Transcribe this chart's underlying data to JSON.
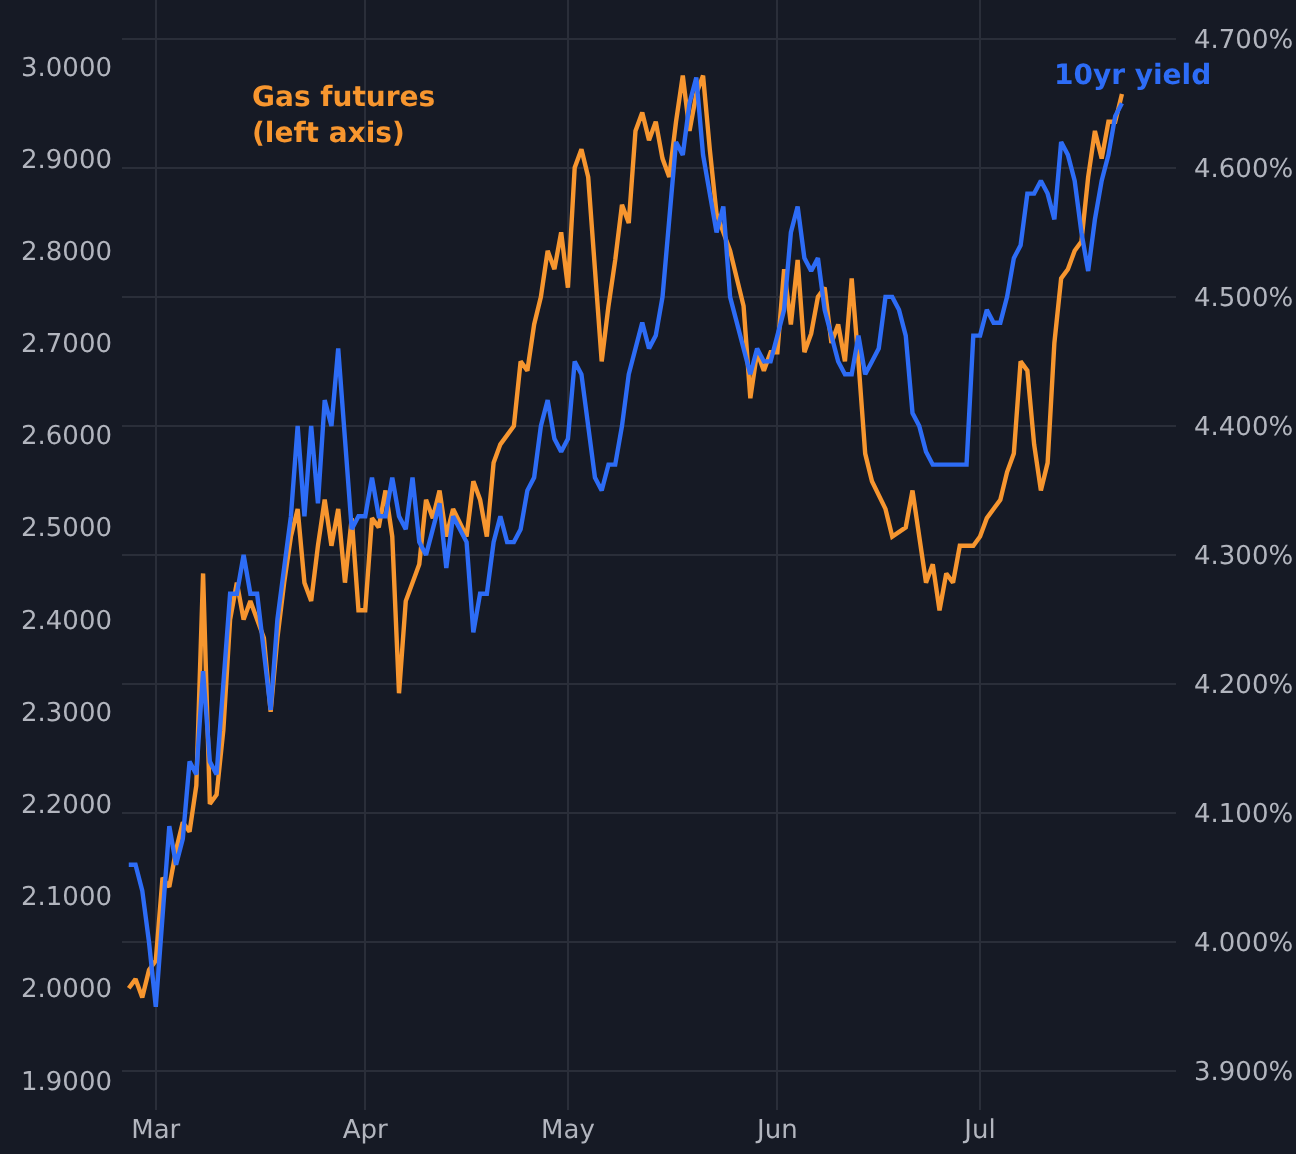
{
  "chart_data": {
    "type": "line",
    "legend": false,
    "grid": true,
    "xlim": [
      "--02-25",
      "--07-30"
    ],
    "xticks": [
      {
        "value": "--03-01",
        "label": "Mar"
      },
      {
        "value": "--04-01",
        "label": "Apr"
      },
      {
        "value": "--05-01",
        "label": "May"
      },
      {
        "value": "--06-01",
        "label": "Jun"
      },
      {
        "value": "--07-01",
        "label": "Jul"
      }
    ],
    "ylim": [
      1.868,
      3.072
    ],
    "yticks": [
      {
        "value": 1.9,
        "label": "1.9000"
      },
      {
        "value": 2.0,
        "label": "2.0000"
      },
      {
        "value": 2.1,
        "label": "2.1000"
      },
      {
        "value": 2.2,
        "label": "2.2000"
      },
      {
        "value": 2.3,
        "label": "2.3000"
      },
      {
        "value": 2.4,
        "label": "2.4000"
      },
      {
        "value": 2.5,
        "label": "2.5000"
      },
      {
        "value": 2.6,
        "label": "2.6000"
      },
      {
        "value": 2.7,
        "label": "2.7000"
      },
      {
        "value": 2.8,
        "label": "2.8000"
      },
      {
        "value": 2.9,
        "label": "2.9000"
      },
      {
        "value": 3.0,
        "label": "3.0000"
      }
    ],
    "y2lim": [
      3.87,
      4.73
    ],
    "y2ticks": [
      {
        "value": 3.9,
        "label": "3.900%"
      },
      {
        "value": 4.0,
        "label": "4.000%"
      },
      {
        "value": 4.1,
        "label": "4.100%"
      },
      {
        "value": 4.2,
        "label": "4.200%"
      },
      {
        "value": 4.3,
        "label": "4.300%"
      },
      {
        "value": 4.4,
        "label": "4.400%"
      },
      {
        "value": 4.5,
        "label": "4.500%"
      },
      {
        "value": 4.6,
        "label": "4.600%"
      },
      {
        "value": 4.7,
        "label": "4.700%"
      }
    ],
    "series": [
      {
        "name": "Gas futures (left axis)",
        "color": "#f7962f",
        "x": [
          "--02-26",
          "--02-27",
          "--02-28",
          "--02-29",
          "--03-01",
          "--03-02",
          "--03-03",
          "--03-04",
          "--03-05",
          "--03-06",
          "--03-07",
          "--03-08",
          "--03-09",
          "--03-10",
          "--03-11",
          "--03-12",
          "--03-13",
          "--03-14",
          "--03-15",
          "--03-16",
          "--03-17",
          "--03-18",
          "--03-19",
          "--03-20",
          "--03-21",
          "--03-22",
          "--03-23",
          "--03-24",
          "--03-25",
          "--03-26",
          "--03-27",
          "--03-28",
          "--03-29",
          "--03-30",
          "--03-31",
          "--04-01",
          "--04-02",
          "--04-03",
          "--04-04",
          "--04-05",
          "--04-06",
          "--04-07",
          "--04-09",
          "--04-10",
          "--04-11",
          "--04-12",
          "--04-13",
          "--04-14",
          "--04-16",
          "--04-17",
          "--04-18",
          "--04-19",
          "--04-20",
          "--04-21",
          "--04-23",
          "--04-24",
          "--04-25",
          "--04-26",
          "--04-27",
          "--04-28",
          "--04-29",
          "--04-30",
          "--05-01",
          "--05-02",
          "--05-03",
          "--05-04",
          "--05-05",
          "--05-06",
          "--05-07",
          "--05-08",
          "--05-09",
          "--05-10",
          "--05-11",
          "--05-12",
          "--05-13",
          "--05-14",
          "--05-15",
          "--05-16",
          "--05-17",
          "--05-18",
          "--05-19",
          "--05-20",
          "--05-21",
          "--05-22",
          "--05-23",
          "--05-24",
          "--05-25",
          "--05-26",
          "--05-27",
          "--05-28",
          "--05-29",
          "--05-30",
          "--05-31",
          "--06-01",
          "--06-02",
          "--06-03",
          "--06-04",
          "--06-05",
          "--06-06",
          "--06-07",
          "--06-08",
          "--06-09",
          "--06-10",
          "--06-11",
          "--06-12",
          "--06-13",
          "--06-14",
          "--06-15",
          "--06-17",
          "--06-18",
          "--06-20",
          "--06-21",
          "--06-22",
          "--06-23",
          "--06-24",
          "--06-25",
          "--06-26",
          "--06-27",
          "--06-28",
          "--06-30",
          "--07-01",
          "--07-02",
          "--07-04",
          "--07-05",
          "--07-06",
          "--07-07",
          "--07-08",
          "--07-09",
          "--07-10",
          "--07-11",
          "--07-12",
          "--07-13",
          "--07-14",
          "--07-15",
          "--07-16",
          "--07-17",
          "--07-18",
          "--07-19",
          "--07-20",
          "--07-21",
          "--07-22"
        ],
        "values": [
          2.0,
          2.01,
          1.99,
          2.02,
          2.03,
          2.12,
          2.11,
          2.15,
          2.18,
          2.17,
          2.22,
          2.45,
          2.2,
          2.21,
          2.28,
          2.4,
          2.44,
          2.4,
          2.42,
          2.4,
          2.38,
          2.3,
          2.38,
          2.44,
          2.49,
          2.52,
          2.44,
          2.42,
          2.48,
          2.53,
          2.48,
          2.52,
          2.44,
          2.51,
          2.41,
          2.41,
          2.51,
          2.5,
          2.54,
          2.49,
          2.32,
          2.42,
          2.46,
          2.53,
          2.51,
          2.54,
          2.49,
          2.52,
          2.49,
          2.55,
          2.53,
          2.49,
          2.57,
          2.59,
          2.61,
          2.68,
          2.67,
          2.72,
          2.75,
          2.8,
          2.78,
          2.82,
          2.76,
          2.89,
          2.91,
          2.88,
          2.78,
          2.68,
          2.74,
          2.79,
          2.85,
          2.83,
          2.93,
          2.95,
          2.92,
          2.94,
          2.9,
          2.88,
          2.94,
          2.99,
          2.93,
          2.97,
          2.99,
          2.91,
          2.84,
          2.82,
          2.8,
          2.77,
          2.74,
          2.64,
          2.69,
          2.67,
          2.69,
          2.69,
          2.78,
          2.72,
          2.79,
          2.69,
          2.71,
          2.75,
          2.76,
          2.7,
          2.72,
          2.68,
          2.77,
          2.68,
          2.58,
          2.55,
          2.52,
          2.49,
          2.5,
          2.54,
          2.49,
          2.44,
          2.46,
          2.41,
          2.45,
          2.44,
          2.48,
          2.48,
          2.49,
          2.51,
          2.53,
          2.56,
          2.58,
          2.68,
          2.67,
          2.59,
          2.54,
          2.57,
          2.7,
          2.77,
          2.78,
          2.8,
          2.81,
          2.88,
          2.93,
          2.9,
          2.94,
          2.94,
          2.97
        ]
      },
      {
        "name": "10yr yield",
        "color": "#2d6cf6",
        "axis": "y2",
        "x": [
          "--02-26",
          "--02-27",
          "--02-28",
          "--02-29",
          "--03-01",
          "--03-02",
          "--03-03",
          "--03-04",
          "--03-05",
          "--03-06",
          "--03-07",
          "--03-08",
          "--03-09",
          "--03-10",
          "--03-11",
          "--03-12",
          "--03-13",
          "--03-14",
          "--03-15",
          "--03-16",
          "--03-18",
          "--03-19",
          "--03-20",
          "--03-21",
          "--03-22",
          "--03-23",
          "--03-24",
          "--03-25",
          "--03-26",
          "--03-27",
          "--03-28",
          "--03-29",
          "--03-30",
          "--03-31",
          "--04-01",
          "--04-02",
          "--04-03",
          "--04-04",
          "--04-05",
          "--04-06",
          "--04-07",
          "--04-08",
          "--04-09",
          "--04-10",
          "--04-11",
          "--04-12",
          "--04-13",
          "--04-14",
          "--04-16",
          "--04-17",
          "--04-18",
          "--04-19",
          "--04-20",
          "--04-21",
          "--04-22",
          "--04-23",
          "--04-24",
          "--04-25",
          "--04-26",
          "--04-27",
          "--04-28",
          "--04-29",
          "--04-30",
          "--05-01",
          "--05-02",
          "--05-03",
          "--05-04",
          "--05-05",
          "--05-06",
          "--05-07",
          "--05-08",
          "--05-09",
          "--05-10",
          "--05-11",
          "--05-12",
          "--05-13",
          "--05-14",
          "--05-15",
          "--05-16",
          "--05-17",
          "--05-18",
          "--05-19",
          "--05-20",
          "--05-21",
          "--05-22",
          "--05-23",
          "--05-24",
          "--05-25",
          "--05-26",
          "--05-27",
          "--05-28",
          "--05-29",
          "--05-30",
          "--05-31",
          "--06-01",
          "--06-02",
          "--06-03",
          "--06-04",
          "--06-05",
          "--06-06",
          "--06-07",
          "--06-08",
          "--06-09",
          "--06-10",
          "--06-11",
          "--06-12",
          "--06-13",
          "--06-14",
          "--06-15",
          "--06-16",
          "--06-17",
          "--06-18",
          "--06-19",
          "--06-20",
          "--06-21",
          "--06-22",
          "--06-23",
          "--06-24",
          "--06-25",
          "--06-26",
          "--06-27",
          "--06-28",
          "--06-29",
          "--06-30",
          "--07-01",
          "--07-02",
          "--07-03",
          "--07-04",
          "--07-05",
          "--07-06",
          "--07-07",
          "--07-08",
          "--07-09",
          "--07-10",
          "--07-11",
          "--07-12",
          "--07-13",
          "--07-14",
          "--07-15",
          "--07-16",
          "--07-17",
          "--07-18",
          "--07-19",
          "--07-20",
          "--07-21",
          "--07-22"
        ],
        "values": [
          4.06,
          4.06,
          4.04,
          4.0,
          3.95,
          4.02,
          4.09,
          4.06,
          4.08,
          4.14,
          4.13,
          4.21,
          4.14,
          4.13,
          4.2,
          4.27,
          4.27,
          4.3,
          4.27,
          4.27,
          4.18,
          4.25,
          4.29,
          4.33,
          4.4,
          4.33,
          4.4,
          4.34,
          4.42,
          4.4,
          4.46,
          4.39,
          4.32,
          4.33,
          4.33,
          4.36,
          4.33,
          4.33,
          4.36,
          4.33,
          4.32,
          4.36,
          4.31,
          4.3,
          4.32,
          4.34,
          4.29,
          4.33,
          4.31,
          4.24,
          4.27,
          4.27,
          4.31,
          4.33,
          4.31,
          4.31,
          4.32,
          4.35,
          4.36,
          4.4,
          4.42,
          4.39,
          4.38,
          4.39,
          4.45,
          4.44,
          4.4,
          4.36,
          4.35,
          4.37,
          4.37,
          4.4,
          4.44,
          4.46,
          4.48,
          4.46,
          4.47,
          4.5,
          4.56,
          4.62,
          4.61,
          4.65,
          4.67,
          4.61,
          4.58,
          4.55,
          4.57,
          4.5,
          4.48,
          4.46,
          4.44,
          4.46,
          4.45,
          4.45,
          4.47,
          4.49,
          4.55,
          4.57,
          4.53,
          4.52,
          4.53,
          4.49,
          4.47,
          4.45,
          4.44,
          4.44,
          4.47,
          4.44,
          4.45,
          4.46,
          4.5,
          4.5,
          4.49,
          4.47,
          4.41,
          4.4,
          4.38,
          4.37,
          4.37,
          4.37,
          4.37,
          4.37,
          4.37,
          4.47,
          4.47,
          4.49,
          4.48,
          4.48,
          4.5,
          4.53,
          4.54,
          4.58,
          4.58,
          4.59,
          4.58,
          4.56,
          4.62,
          4.61,
          4.59,
          4.55,
          4.52,
          4.56,
          4.59,
          4.61,
          4.64,
          4.65
        ]
      }
    ]
  }
}
